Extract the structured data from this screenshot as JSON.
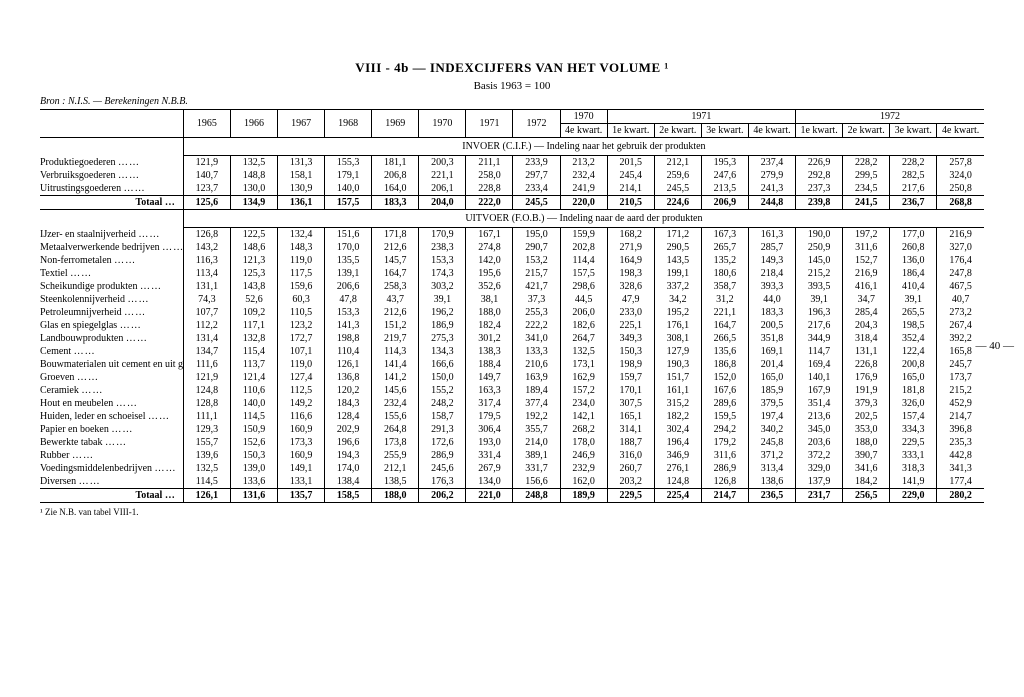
{
  "header": {
    "title": "VIII - 4b — INDEXCIJFERS VAN HET VOLUME ¹",
    "subtitle": "Basis 1963 = 100",
    "source": "Bron : N.I.S. — Berekeningen N.B.B.",
    "footnote": "¹ Zie N.B. van tabel VIII-1.",
    "page": "— 40 —"
  },
  "columns": {
    "years": [
      "1965",
      "1966",
      "1967",
      "1968",
      "1969",
      "1970",
      "1971",
      "1972"
    ],
    "qtr_groups": [
      "1970",
      "1971",
      "1972"
    ],
    "qtr_label_1970": "4e kwart.",
    "qtr_labels": [
      "1e kwart.",
      "2e kwart.",
      "3e kwart.",
      "4e kwart."
    ]
  },
  "banners": {
    "invoer": "INVOER (C.I.F.) — Indeling naar het gebruik der produkten",
    "uitvoer": "UITVOER (F.O.B.) — Indeling naar de aard der produkten",
    "totaal": "Totaal …"
  },
  "invoer_rows": [
    {
      "label": "Produktiegoederen",
      "v": [
        "121,9",
        "132,5",
        "131,3",
        "155,3",
        "181,1",
        "200,3",
        "211,1",
        "233,9",
        "213,2",
        "201,5",
        "212,1",
        "195,3",
        "237,4",
        "226,9",
        "228,2",
        "228,2",
        "257,8"
      ]
    },
    {
      "label": "Verbruiksgoederen",
      "v": [
        "140,7",
        "148,8",
        "158,1",
        "179,1",
        "206,8",
        "221,1",
        "258,0",
        "297,7",
        "232,4",
        "245,4",
        "259,6",
        "247,6",
        "279,9",
        "292,8",
        "299,5",
        "282,5",
        "324,0"
      ]
    },
    {
      "label": "Uitrustingsgoederen",
      "v": [
        "123,7",
        "130,0",
        "130,9",
        "140,0",
        "164,0",
        "206,1",
        "228,8",
        "233,4",
        "241,9",
        "214,1",
        "245,5",
        "213,5",
        "241,3",
        "237,3",
        "234,5",
        "217,6",
        "250,8"
      ]
    }
  ],
  "invoer_total": [
    "125,6",
    "134,9",
    "136,1",
    "157,5",
    "183,3",
    "204,0",
    "222,0",
    "245,5",
    "220,0",
    "210,5",
    "224,6",
    "206,9",
    "244,8",
    "239,8",
    "241,5",
    "236,7",
    "268,8"
  ],
  "uitvoer_rows": [
    {
      "label": "IJzer- en staalnijverheid",
      "v": [
        "126,8",
        "122,5",
        "132,4",
        "151,6",
        "171,8",
        "170,9",
        "167,1",
        "195,0",
        "159,9",
        "168,2",
        "171,2",
        "167,3",
        "161,3",
        "190,0",
        "197,2",
        "177,0",
        "216,9"
      ]
    },
    {
      "label": "Metaalverwerkende bedrijven",
      "v": [
        "143,2",
        "148,6",
        "148,3",
        "170,0",
        "212,6",
        "238,3",
        "274,8",
        "290,7",
        "202,8",
        "271,9",
        "290,5",
        "265,7",
        "285,7",
        "250,9",
        "311,6",
        "260,8",
        "327,0"
      ]
    },
    {
      "label": "Non-ferrometalen",
      "v": [
        "116,3",
        "121,3",
        "119,0",
        "135,5",
        "145,7",
        "153,3",
        "142,0",
        "153,2",
        "114,4",
        "164,9",
        "143,5",
        "135,2",
        "149,3",
        "145,0",
        "152,7",
        "136,0",
        "176,4"
      ]
    },
    {
      "label": "Textiel",
      "v": [
        "113,4",
        "125,3",
        "117,5",
        "139,1",
        "164,7",
        "174,3",
        "195,6",
        "215,7",
        "157,5",
        "198,3",
        "199,1",
        "180,6",
        "218,4",
        "215,2",
        "216,9",
        "186,4",
        "247,8"
      ]
    },
    {
      "label": "Scheikundige produkten",
      "v": [
        "131,1",
        "143,8",
        "159,6",
        "206,6",
        "258,3",
        "303,2",
        "352,6",
        "421,7",
        "298,6",
        "328,6",
        "337,2",
        "358,7",
        "393,3",
        "393,5",
        "416,1",
        "410,4",
        "467,5"
      ]
    },
    {
      "label": "Steenkolennijverheid",
      "v": [
        "74,3",
        "52,6",
        "60,3",
        "47,8",
        "43,7",
        "39,1",
        "38,1",
        "37,3",
        "44,5",
        "47,9",
        "34,2",
        "31,2",
        "44,0",
        "39,1",
        "34,7",
        "39,1",
        "40,7"
      ]
    },
    {
      "label": "Petroleumnijverheid",
      "v": [
        "107,7",
        "109,2",
        "110,5",
        "153,3",
        "212,6",
        "196,2",
        "188,0",
        "255,3",
        "206,0",
        "233,0",
        "195,2",
        "221,1",
        "183,3",
        "196,3",
        "285,4",
        "265,5",
        "273,2"
      ]
    },
    {
      "label": "Glas en spiegelglas",
      "v": [
        "112,2",
        "117,1",
        "123,2",
        "141,3",
        "151,2",
        "186,9",
        "182,4",
        "222,2",
        "182,6",
        "225,1",
        "176,1",
        "164,7",
        "200,5",
        "217,6",
        "204,3",
        "198,5",
        "267,4"
      ]
    },
    {
      "label": "Landbouwprodukten",
      "v": [
        "131,4",
        "132,8",
        "172,7",
        "198,8",
        "219,7",
        "275,3",
        "301,2",
        "341,0",
        "264,7",
        "349,3",
        "308,1",
        "266,5",
        "351,8",
        "344,9",
        "318,4",
        "352,4",
        "392,2"
      ]
    },
    {
      "label": "Cement",
      "v": [
        "134,7",
        "115,4",
        "107,1",
        "110,4",
        "114,3",
        "134,3",
        "138,3",
        "133,3",
        "132,5",
        "150,3",
        "127,9",
        "135,6",
        "169,1",
        "114,7",
        "131,1",
        "122,4",
        "165,8"
      ]
    },
    {
      "label": "Bouwmaterialen uit cement en uit gips",
      "v": [
        "111,6",
        "113,7",
        "119,0",
        "126,1",
        "141,4",
        "166,6",
        "188,4",
        "210,6",
        "173,1",
        "198,9",
        "190,3",
        "186,8",
        "201,4",
        "169,4",
        "226,8",
        "200,8",
        "245,7"
      ]
    },
    {
      "label": "Groeven",
      "v": [
        "121,9",
        "121,4",
        "127,4",
        "136,8",
        "141,2",
        "150,0",
        "149,7",
        "163,9",
        "162,9",
        "159,7",
        "151,7",
        "152,0",
        "165,0",
        "140,1",
        "176,9",
        "165,0",
        "173,7"
      ]
    },
    {
      "label": "Ceramiek",
      "v": [
        "124,8",
        "110,6",
        "112,5",
        "120,2",
        "145,6",
        "155,2",
        "163,3",
        "189,4",
        "157,2",
        "170,1",
        "161,1",
        "167,6",
        "185,9",
        "167,9",
        "191,9",
        "181,8",
        "215,2"
      ]
    },
    {
      "label": "Hout en meubelen",
      "v": [
        "128,8",
        "140,0",
        "149,2",
        "184,3",
        "232,4",
        "248,2",
        "317,4",
        "377,4",
        "234,0",
        "307,5",
        "315,2",
        "289,6",
        "379,5",
        "351,4",
        "379,3",
        "326,0",
        "452,9"
      ]
    },
    {
      "label": "Huiden, leder en schoeisel",
      "v": [
        "111,1",
        "114,5",
        "116,6",
        "128,4",
        "155,6",
        "158,7",
        "179,5",
        "192,2",
        "142,1",
        "165,1",
        "182,2",
        "159,5",
        "197,4",
        "213,6",
        "202,5",
        "157,4",
        "214,7"
      ]
    },
    {
      "label": "Papier en boeken",
      "v": [
        "129,3",
        "150,9",
        "160,9",
        "202,9",
        "264,8",
        "291,3",
        "306,4",
        "355,7",
        "268,2",
        "314,1",
        "302,4",
        "294,2",
        "340,2",
        "345,0",
        "353,0",
        "334,3",
        "396,8"
      ]
    },
    {
      "label": "Bewerkte tabak",
      "v": [
        "155,7",
        "152,6",
        "173,3",
        "196,6",
        "173,8",
        "172,6",
        "193,0",
        "214,0",
        "178,0",
        "188,7",
        "196,4",
        "179,2",
        "245,8",
        "203,6",
        "188,0",
        "229,5",
        "235,3"
      ]
    },
    {
      "label": "Rubber",
      "v": [
        "139,6",
        "150,3",
        "160,9",
        "194,3",
        "255,9",
        "286,9",
        "331,4",
        "389,1",
        "246,9",
        "316,0",
        "346,9",
        "311,6",
        "371,2",
        "372,2",
        "390,7",
        "333,1",
        "442,8"
      ]
    },
    {
      "label": "Voedingsmiddelenbedrijven",
      "v": [
        "132,5",
        "139,0",
        "149,1",
        "174,0",
        "212,1",
        "245,6",
        "267,9",
        "331,7",
        "232,9",
        "260,7",
        "276,1",
        "286,9",
        "313,4",
        "329,0",
        "341,6",
        "318,3",
        "341,3"
      ]
    },
    {
      "label": "Diversen",
      "v": [
        "114,5",
        "133,6",
        "133,1",
        "138,4",
        "138,5",
        "176,3",
        "134,0",
        "156,6",
        "162,0",
        "203,2",
        "124,8",
        "126,8",
        "138,6",
        "137,9",
        "184,2",
        "141,9",
        "177,4"
      ]
    }
  ],
  "uitvoer_total": [
    "126,1",
    "131,6",
    "135,7",
    "158,5",
    "188,0",
    "206,2",
    "221,0",
    "248,8",
    "189,9",
    "229,5",
    "225,4",
    "214,7",
    "236,5",
    "231,7",
    "256,5",
    "229,0",
    "280,2"
  ]
}
